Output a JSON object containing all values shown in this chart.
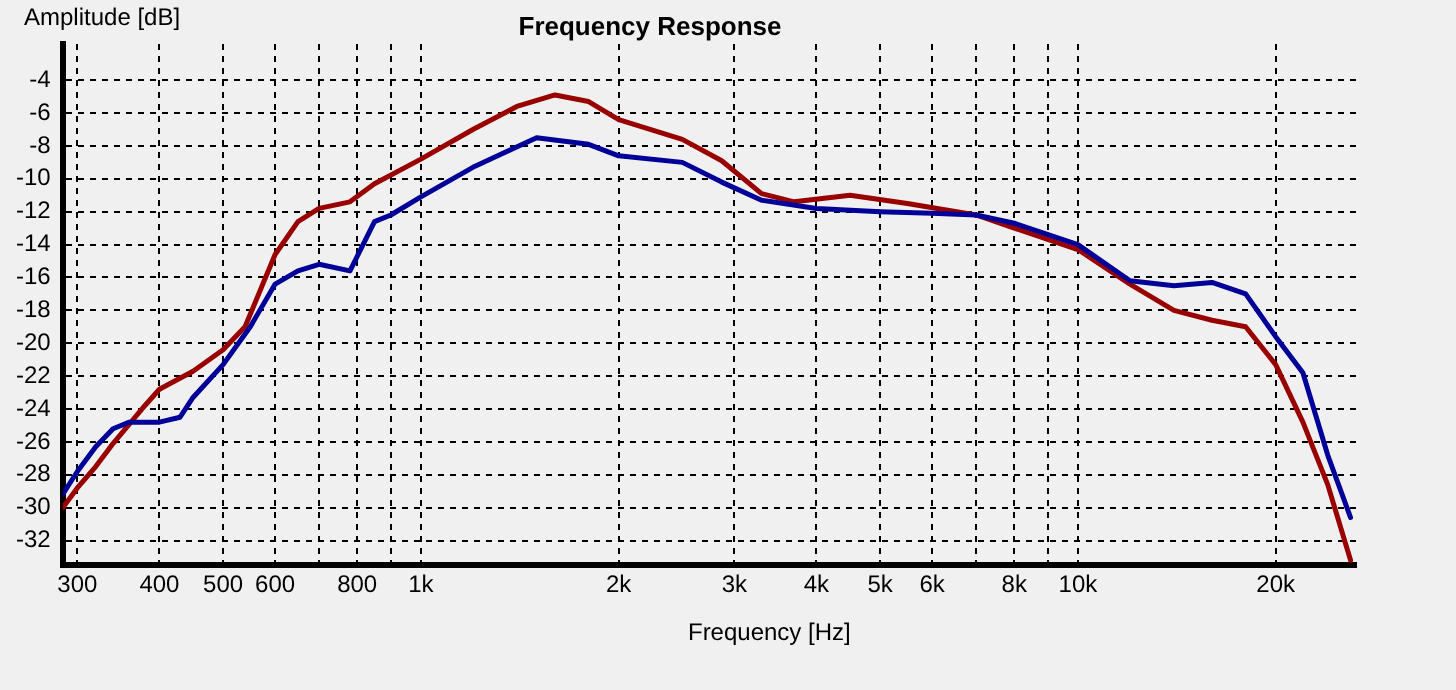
{
  "chart_data": {
    "type": "line",
    "title": "Frequency Response",
    "xlabel": "Frequency [Hz]",
    "ylabel": "Amplitude [dB]",
    "log": "x",
    "grid": true,
    "legend": false,
    "marker": "none",
    "line_style": "solid",
    "xlim": [
      285,
      26500
    ],
    "ylim": [
      -33.5,
      -1.8
    ],
    "xticks": [
      300,
      400,
      500,
      600,
      {
        "value": 700,
        "label": null
      },
      800,
      {
        "value": 900,
        "label": null
      },
      {
        "value": 1000,
        "label": "1k"
      },
      {
        "value": 2000,
        "label": "2k"
      },
      {
        "value": 3000,
        "label": "3k"
      },
      {
        "value": 4000,
        "label": "4k"
      },
      {
        "value": 5000,
        "label": "5k"
      },
      {
        "value": 6000,
        "label": "6k"
      },
      {
        "value": 7000,
        "label": null
      },
      {
        "value": 8000,
        "label": "8k"
      },
      {
        "value": 9000,
        "label": null
      },
      {
        "value": 10000,
        "label": "10k"
      },
      {
        "value": 20000,
        "label": "20k"
      }
    ],
    "yticks": [
      -4,
      -6,
      -8,
      -10,
      -12,
      -14,
      -16,
      -18,
      -20,
      -22,
      -24,
      -26,
      -28,
      -30,
      -32
    ],
    "series": [
      {
        "color": "#000099",
        "x": [
          285,
          300,
          320,
          340,
          360,
          400,
          430,
          450,
          500,
          550,
          600,
          650,
          700,
          780,
          850,
          900,
          1000,
          1200,
          1500,
          1800,
          2000,
          2500,
          2870,
          3300,
          4000,
          5000,
          6000,
          7000,
          8000,
          10000,
          12000,
          14000,
          16000,
          18000,
          20000,
          22000,
          24000,
          26000
        ],
        "values": [
          -29.2,
          -27.8,
          -26.3,
          -25.2,
          -24.8,
          -24.8,
          -24.5,
          -23.3,
          -21.3,
          -19,
          -16.4,
          -15.6,
          -15.2,
          -15.6,
          -12.6,
          -12.2,
          -11.1,
          -9.3,
          -7.5,
          -7.9,
          -8.6,
          -9,
          -10.2,
          -11.3,
          -11.8,
          -12,
          -12.1,
          -12.2,
          -12.7,
          -14,
          -16.2,
          -16.5,
          -16.3,
          -17,
          -19.6,
          -21.8,
          -26.8,
          -30.6
        ]
      },
      {
        "color": "#990000",
        "x": [
          285,
          300,
          320,
          340,
          380,
          400,
          450,
          500,
          540,
          600,
          650,
          700,
          780,
          850,
          1000,
          1200,
          1400,
          1600,
          1800,
          2000,
          2500,
          2870,
          3300,
          3700,
          4500,
          5500,
          7000,
          8000,
          10000,
          12000,
          14000,
          16000,
          18000,
          20000,
          22000,
          24000,
          26000
        ],
        "values": [
          -30,
          -28.8,
          -27.5,
          -26.1,
          -23.8,
          -22.8,
          -21.7,
          -20.4,
          -19,
          -14.6,
          -12.6,
          -11.8,
          -11.4,
          -10.3,
          -8.8,
          -7,
          -5.6,
          -4.9,
          -5.3,
          -6.4,
          -7.6,
          -8.9,
          -10.9,
          -11.4,
          -11,
          -11.5,
          -12.2,
          -13,
          -14.3,
          -16.4,
          -18,
          -18.6,
          -19,
          -21.3,
          -24.8,
          -28.6,
          -33.2
        ]
      }
    ]
  }
}
